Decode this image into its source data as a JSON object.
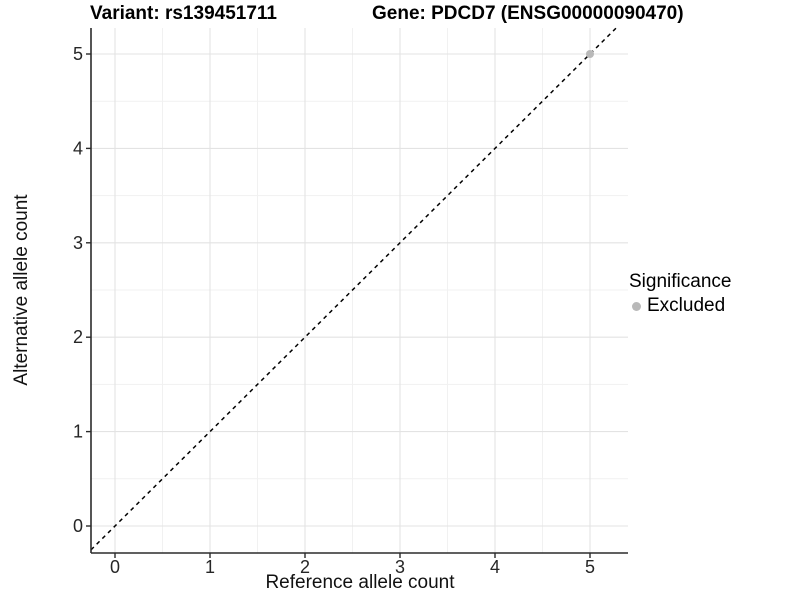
{
  "chart_data": {
    "type": "scatter",
    "title_left": "Variant: rs139451711",
    "title_right": "Gene: PDCD7 (ENSG00000090470)",
    "xlabel": "Reference allele count",
    "ylabel": "Alternative allele count",
    "x_ticks": [
      0,
      1,
      2,
      3,
      4,
      5
    ],
    "y_ticks": [
      0,
      1,
      2,
      3,
      4,
      5
    ],
    "xlim": [
      -0.25,
      5.4
    ],
    "ylim": [
      -0.29,
      5.27
    ],
    "grid": "major and minor gridlines, minor step 0.5",
    "identity_line": {
      "equation": "y = x",
      "style": "dashed",
      "color": "#000000"
    },
    "points": [
      {
        "x": 5,
        "y": 5,
        "significance": "Excluded"
      }
    ],
    "legend": {
      "position": "right",
      "title": "Significance",
      "items": [
        {
          "label": "Excluded",
          "color": "#b9b9b9"
        }
      ]
    },
    "colors": {
      "point_excluded": "#b9b9b9",
      "grid_major": "#e3e3e3",
      "grid_minor": "#f1f1f1",
      "axis_line": "#2b2b2b",
      "tick_label": "#262626"
    }
  }
}
